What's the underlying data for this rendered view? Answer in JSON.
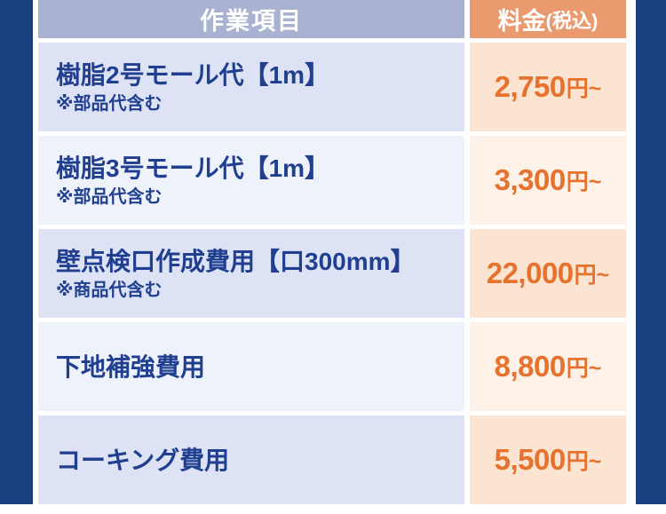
{
  "page": {
    "background_color": "#ffffff",
    "frame_color": "#1a4080"
  },
  "table": {
    "header": {
      "item_label": "作業項目",
      "price_label": "料金",
      "price_label_suffix": "(税込)",
      "item_bg": "#a9b3d1",
      "price_bg": "#e99a6f",
      "text_color": "#ffffff"
    },
    "colors": {
      "item_cell_dark": "#dde3f4",
      "item_cell_light": "#eef2fb",
      "price_cell_dark": "#fce4d3",
      "price_cell_light": "#fdf1e8",
      "item_text": "#213f90",
      "price_text": "#e7722d"
    },
    "rows": [
      {
        "title": "樹脂2号モール代【1m】",
        "note": "※部品代含む",
        "price": "2,750",
        "price_suffix": "円~"
      },
      {
        "title": "樹脂3号モール代【1m】",
        "note": "※部品代含む",
        "price": "3,300",
        "price_suffix": "円~"
      },
      {
        "title": "壁点検口作成費用【口300mm】",
        "note": "※商品代含む",
        "price": "22,000",
        "price_suffix": "円~"
      },
      {
        "title": "下地補強費用",
        "note": "",
        "price": "8,800",
        "price_suffix": "円~"
      },
      {
        "title": "コーキング費用",
        "note": "",
        "price": "5,500",
        "price_suffix": "円~"
      }
    ]
  }
}
